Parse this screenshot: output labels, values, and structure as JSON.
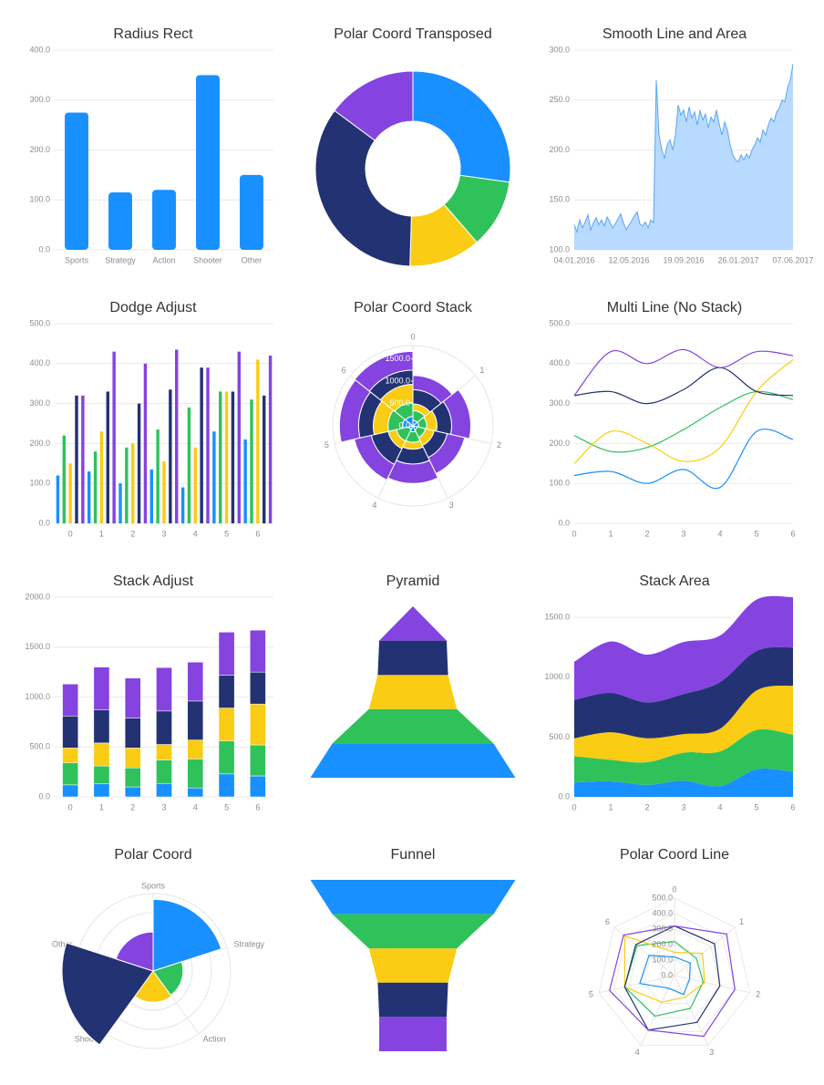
{
  "chart_data": [
    {
      "type": "bar",
      "title": "Radius Rect",
      "categories": [
        "Sports",
        "Strategy",
        "Action",
        "Shooter",
        "Other"
      ],
      "values": [
        275,
        115,
        120,
        350,
        150
      ],
      "color": "#1890ff",
      "ylim": [
        0,
        400
      ],
      "yticks": [
        {
          "value": 0,
          "label": "0.0"
        },
        {
          "value": 100,
          "label": "100.0"
        },
        {
          "value": 200,
          "label": "200.0"
        },
        {
          "value": 300,
          "label": "300.0"
        },
        {
          "value": 400,
          "label": "400.0"
        }
      ],
      "grid": true
    },
    {
      "type": "donut",
      "title": "Polar Coord Transposed",
      "values": [
        275,
        115,
        120,
        350,
        150
      ],
      "colors": [
        "#1890ff",
        "#2fc25b",
        "#facc14",
        "#223273",
        "#8543e0"
      ]
    },
    {
      "type": "area",
      "title": "Smooth Line and Area",
      "values": [
        125,
        118,
        130,
        122,
        128,
        135,
        120,
        127,
        132,
        125,
        130,
        124,
        133,
        128,
        122,
        126,
        131,
        136,
        127,
        120,
        125,
        129,
        134,
        138,
        126,
        124,
        128,
        122,
        130,
        127,
        270,
        215,
        200,
        192,
        205,
        210,
        200,
        215,
        245,
        235,
        240,
        228,
        243,
        232,
        238,
        225,
        240,
        230,
        236,
        222,
        233,
        228,
        240,
        226,
        215,
        228,
        220,
        205,
        195,
        190,
        188,
        195,
        190,
        196,
        192,
        200,
        205,
        212,
        208,
        220,
        215,
        225,
        232,
        228,
        238,
        242,
        250,
        248,
        262,
        270,
        286
      ],
      "color": "#5aa5f5",
      "area_color": "#b8daff",
      "xlim": [
        0,
        80
      ],
      "xticks": [
        {
          "value": 0,
          "label": "04.01.2016"
        },
        {
          "value": 20,
          "label": "12.05.2016"
        },
        {
          "value": 40,
          "label": "19.09.2016"
        },
        {
          "value": 60,
          "label": "26.01.2017"
        },
        {
          "value": 80,
          "label": "07.06.2017"
        }
      ],
      "ylim": [
        100,
        300
      ],
      "yticks": [
        {
          "value": 100,
          "label": "100.0"
        },
        {
          "value": 150,
          "label": "150.0"
        },
        {
          "value": 200,
          "label": "200.0"
        },
        {
          "value": 250,
          "label": "250.0"
        },
        {
          "value": 300,
          "label": "300.0"
        }
      ],
      "grid": true
    },
    {
      "type": "dodge",
      "title": "Dodge Adjust",
      "categories": [
        "0",
        "1",
        "2",
        "3",
        "4",
        "5",
        "6"
      ],
      "series": [
        {
          "color": "#1890ff",
          "values": [
            120,
            130,
            100,
            135,
            90,
            230,
            210
          ]
        },
        {
          "color": "#2fc25b",
          "values": [
            220,
            180,
            190,
            235,
            290,
            330,
            310
          ]
        },
        {
          "color": "#facc14",
          "values": [
            150,
            230,
            200,
            155,
            190,
            330,
            410
          ]
        },
        {
          "color": "#223273",
          "values": [
            320,
            330,
            300,
            335,
            390,
            330,
            320
          ]
        },
        {
          "color": "#8543e0",
          "values": [
            320,
            430,
            400,
            435,
            390,
            430,
            420
          ]
        }
      ],
      "ylim": [
        0,
        500
      ],
      "yticks": [
        {
          "value": 0,
          "label": "0.0"
        },
        {
          "value": 100,
          "label": "100.0"
        },
        {
          "value": 200,
          "label": "200.0"
        },
        {
          "value": 300,
          "label": "300.0"
        },
        {
          "value": 400,
          "label": "400.0"
        },
        {
          "value": 500,
          "label": "500.0"
        }
      ],
      "grid": true
    },
    {
      "type": "radialstack",
      "title": "Polar Coord Stack",
      "categories": [
        "0",
        "1",
        "2",
        "3",
        "4",
        "5",
        "6"
      ],
      "series": [
        {
          "color": "#1890ff",
          "values": [
            120,
            130,
            100,
            135,
            90,
            230,
            210
          ]
        },
        {
          "color": "#2fc25b",
          "values": [
            220,
            180,
            190,
            235,
            290,
            330,
            310
          ]
        },
        {
          "color": "#facc14",
          "values": [
            150,
            230,
            200,
            155,
            190,
            330,
            410
          ]
        },
        {
          "color": "#223273",
          "values": [
            320,
            330,
            300,
            335,
            390,
            330,
            320
          ]
        },
        {
          "color": "#8543e0",
          "values": [
            320,
            430,
            400,
            435,
            390,
            430,
            420
          ]
        }
      ],
      "rlim": [
        0,
        1800
      ],
      "rticks": [
        {
          "value": 0,
          "label": "0.0"
        },
        {
          "value": 500,
          "label": "500.0"
        },
        {
          "value": 1000,
          "label": "1000.0"
        },
        {
          "value": 1500,
          "label": "1500.0"
        }
      ]
    },
    {
      "type": "line",
      "title": "Multi Line (No Stack)",
      "categories": [
        "0",
        "1",
        "2",
        "3",
        "4",
        "5",
        "6"
      ],
      "series": [
        {
          "color": "#1890ff",
          "values": [
            120,
            130,
            100,
            135,
            90,
            230,
            210
          ]
        },
        {
          "color": "#2fc25b",
          "values": [
            220,
            180,
            190,
            235,
            290,
            330,
            310
          ]
        },
        {
          "color": "#facc14",
          "values": [
            150,
            230,
            200,
            155,
            190,
            330,
            410
          ]
        },
        {
          "color": "#223273",
          "values": [
            320,
            330,
            300,
            335,
            390,
            330,
            320
          ]
        },
        {
          "color": "#8543e0",
          "values": [
            320,
            430,
            400,
            435,
            390,
            430,
            420
          ]
        }
      ],
      "ylim": [
        0,
        500
      ],
      "yticks": [
        {
          "value": 0,
          "label": "0.0"
        },
        {
          "value": 100,
          "label": "100.0"
        },
        {
          "value": 200,
          "label": "200.0"
        },
        {
          "value": 300,
          "label": "300.0"
        },
        {
          "value": 400,
          "label": "400.0"
        },
        {
          "value": 500,
          "label": "500.0"
        }
      ],
      "grid": true
    },
    {
      "type": "stack",
      "title": "Stack Adjust",
      "categories": [
        "0",
        "1",
        "2",
        "3",
        "4",
        "5",
        "6"
      ],
      "series": [
        {
          "color": "#1890ff",
          "values": [
            120,
            130,
            100,
            135,
            90,
            230,
            210
          ]
        },
        {
          "color": "#2fc25b",
          "values": [
            220,
            180,
            190,
            235,
            290,
            330,
            310
          ]
        },
        {
          "color": "#facc14",
          "values": [
            150,
            230,
            200,
            155,
            190,
            330,
            410
          ]
        },
        {
          "color": "#223273",
          "values": [
            320,
            330,
            300,
            335,
            390,
            330,
            320
          ]
        },
        {
          "color": "#8543e0",
          "values": [
            320,
            430,
            400,
            435,
            390,
            430,
            420
          ]
        }
      ],
      "ylim": [
        0,
        2000
      ],
      "yticks": [
        {
          "value": 0,
          "label": "0.0"
        },
        {
          "value": 500,
          "label": "500.0"
        },
        {
          "value": 1000,
          "label": "1000.0"
        },
        {
          "value": 1500,
          "label": "1500.0"
        },
        {
          "value": 2000,
          "label": "2000.0"
        }
      ],
      "grid": true
    },
    {
      "type": "pyramid",
      "title": "Pyramid",
      "values": [
        350,
        275,
        150,
        120,
        115
      ],
      "colors": [
        "#1890ff",
        "#2fc25b",
        "#facc14",
        "#223273",
        "#8543e0"
      ]
    },
    {
      "type": "stackarea",
      "title": "Stack Area",
      "categories": [
        "0",
        "1",
        "2",
        "3",
        "4",
        "5",
        "6"
      ],
      "series": [
        {
          "color": "#1890ff",
          "values": [
            120,
            130,
            100,
            135,
            90,
            230,
            210
          ]
        },
        {
          "color": "#2fc25b",
          "values": [
            220,
            180,
            190,
            235,
            290,
            330,
            310
          ]
        },
        {
          "color": "#facc14",
          "values": [
            150,
            230,
            200,
            155,
            190,
            330,
            410
          ]
        },
        {
          "color": "#223273",
          "values": [
            320,
            330,
            300,
            335,
            390,
            330,
            320
          ]
        },
        {
          "color": "#8543e0",
          "values": [
            320,
            430,
            400,
            435,
            390,
            430,
            420
          ]
        }
      ],
      "ylim": [
        0,
        1670
      ],
      "yticks": [
        {
          "value": 0,
          "label": "0.0"
        },
        {
          "value": 500,
          "label": "500.0"
        },
        {
          "value": 1000,
          "label": "1000.0"
        },
        {
          "value": 1500,
          "label": "1500.0"
        }
      ],
      "grid": true
    },
    {
      "type": "rose",
      "title": "Polar Coord",
      "categories": [
        "Sports",
        "Strategy",
        "Action",
        "Shooter",
        "Other"
      ],
      "values": [
        275,
        115,
        120,
        350,
        150
      ],
      "colors": [
        "#1890ff",
        "#2fc25b",
        "#facc14",
        "#223273",
        "#8543e0"
      ],
      "rlim": [
        0,
        350
      ]
    },
    {
      "type": "funnel",
      "title": "Funnel",
      "values": [
        350,
        275,
        150,
        120,
        115
      ],
      "colors": [
        "#1890ff",
        "#2fc25b",
        "#facc14",
        "#223273",
        "#8543e0"
      ]
    },
    {
      "type": "radar",
      "title": "Polar Coord Line",
      "categories": [
        "0",
        "1",
        "2",
        "3",
        "4",
        "5",
        "6"
      ],
      "series": [
        {
          "color": "#1890ff",
          "values": [
            120,
            130,
            100,
            135,
            90,
            230,
            210
          ]
        },
        {
          "color": "#2fc25b",
          "values": [
            220,
            180,
            190,
            235,
            290,
            330,
            310
          ]
        },
        {
          "color": "#facc14",
          "values": [
            150,
            230,
            200,
            155,
            190,
            330,
            410
          ]
        },
        {
          "color": "#223273",
          "values": [
            320,
            330,
            300,
            335,
            390,
            330,
            320
          ]
        },
        {
          "color": "#8543e0",
          "values": [
            320,
            430,
            400,
            435,
            390,
            430,
            420
          ]
        }
      ],
      "rlim": [
        0,
        500
      ],
      "rticks": [
        {
          "value": 0,
          "label": "0.0"
        },
        {
          "value": 100,
          "label": "100.0"
        },
        {
          "value": 200,
          "label": "200.0"
        },
        {
          "value": 300,
          "label": "300.0"
        },
        {
          "value": 400,
          "label": "400.0"
        },
        {
          "value": 500,
          "label": "500.0"
        }
      ]
    }
  ]
}
